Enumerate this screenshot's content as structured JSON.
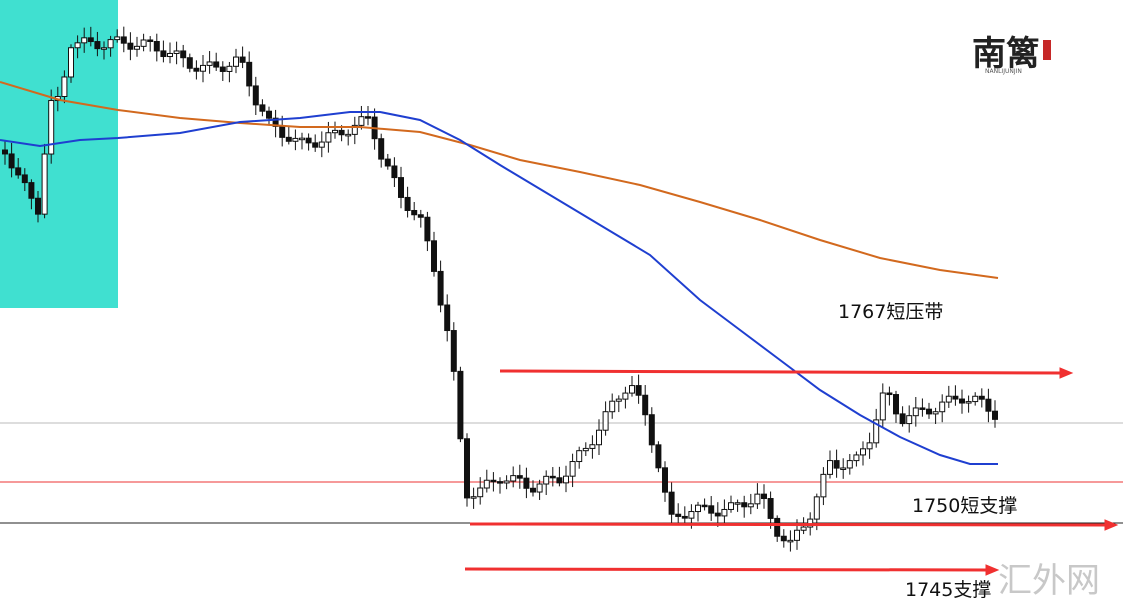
{
  "annotations": [
    "1767短压带",
    "1750短支撑",
    "1745支撑"
  ],
  "logo": {
    "title": "南篱",
    "subtitle": "NANLIJUNJIN"
  },
  "watermark": "汇外网"
}
